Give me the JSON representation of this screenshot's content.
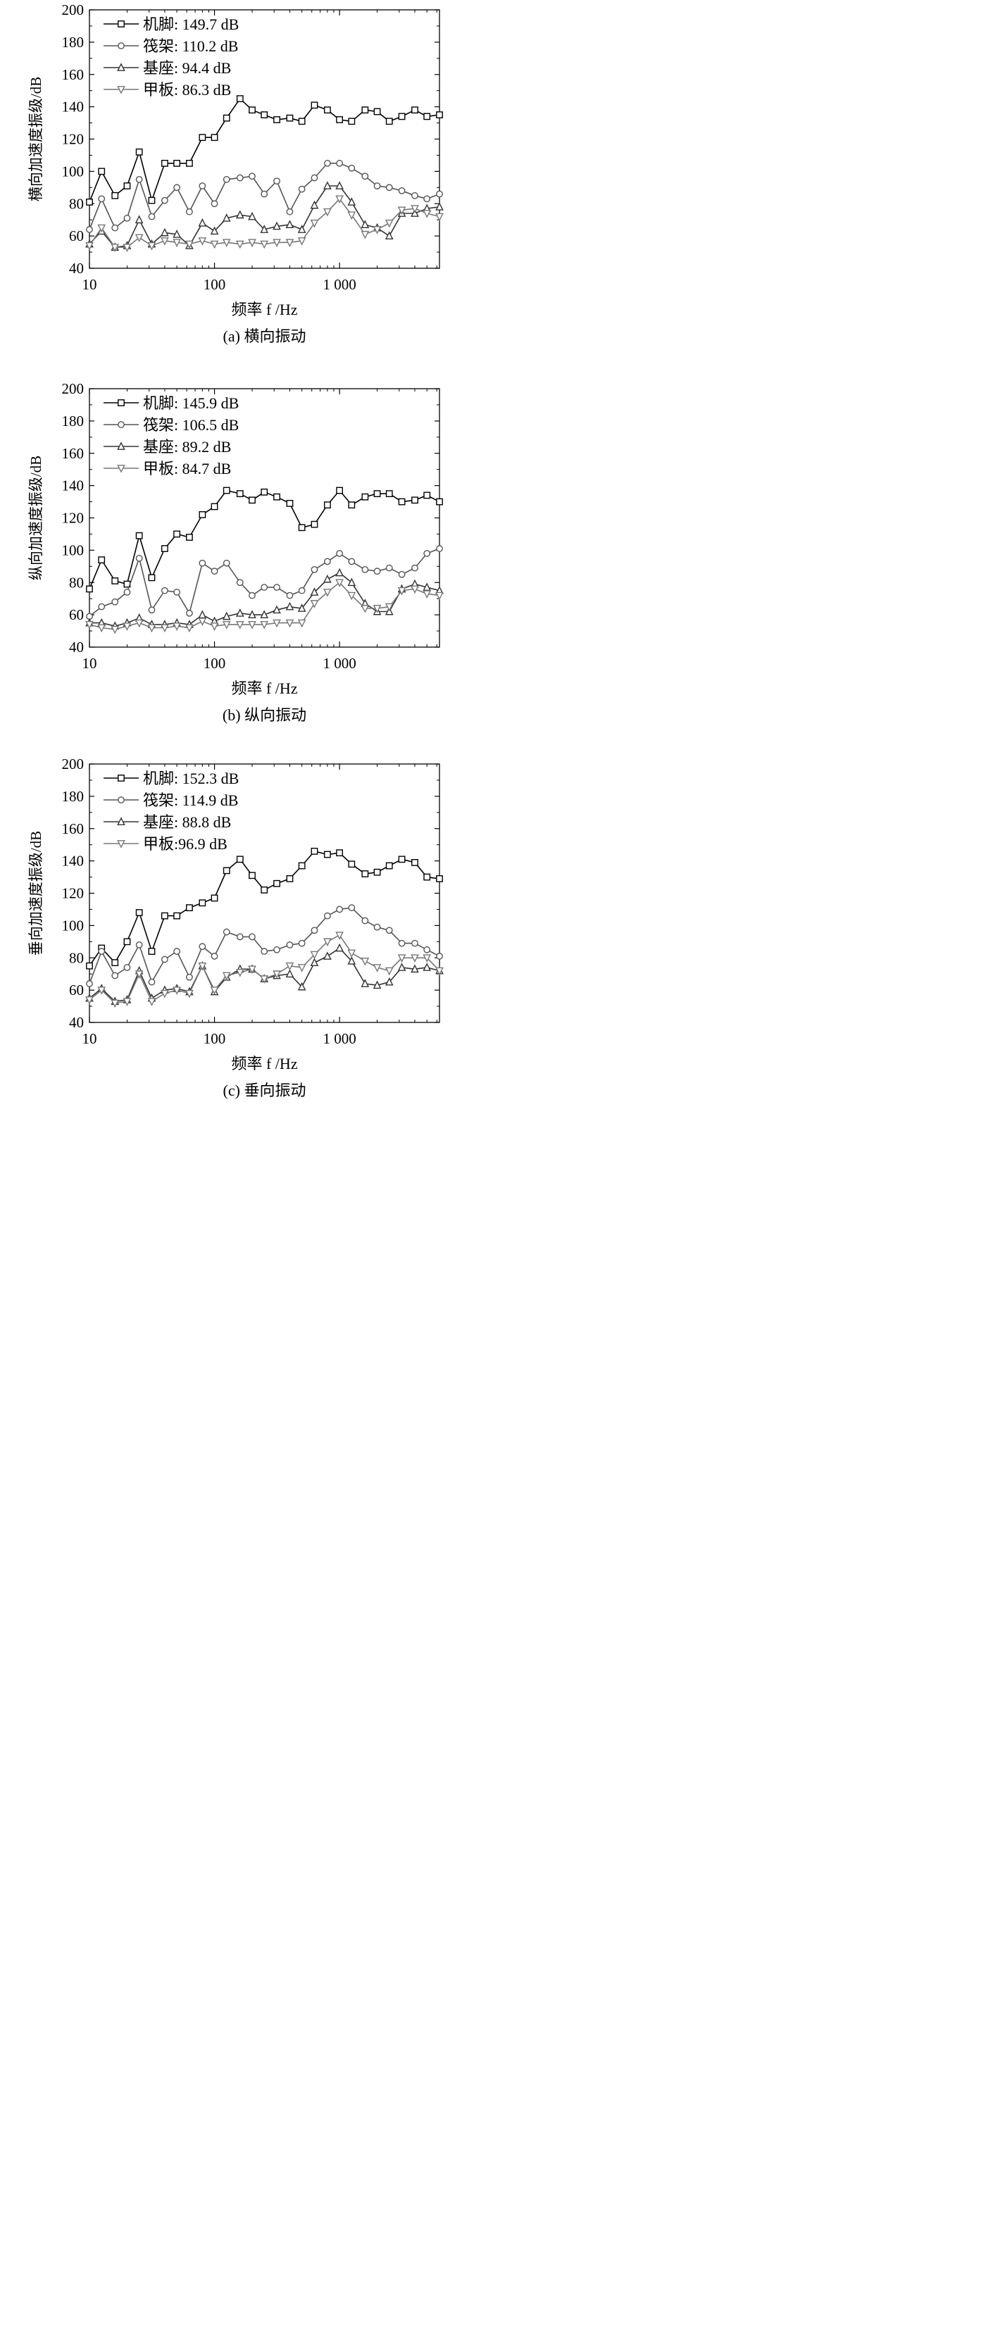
{
  "chart_data": [
    {
      "type": "line",
      "caption": "(a) 横向振动",
      "xlabel": "频率 f /Hz",
      "ylabel": "横向加速度振级/dB",
      "x_scale": "log",
      "xlim": [
        10,
        6300
      ],
      "ylim": [
        40,
        200
      ],
      "x_ticks": [
        10,
        100,
        1000
      ],
      "x_tick_labels": [
        "10",
        "100",
        "1 000"
      ],
      "y_ticks": [
        40,
        60,
        80,
        100,
        120,
        140,
        160,
        180,
        200
      ],
      "x": [
        10,
        12.5,
        16,
        20,
        25,
        31.5,
        40,
        50,
        63,
        80,
        100,
        125,
        160,
        200,
        250,
        315,
        400,
        500,
        630,
        800,
        1000,
        1250,
        1600,
        2000,
        2500,
        3150,
        4000,
        5000,
        6300
      ],
      "legend_position": "top-left",
      "series": [
        {
          "name": "机脚: 149.7 dB",
          "marker": "square",
          "color": "#000000",
          "values": [
            81,
            100,
            85,
            91,
            112,
            82,
            105,
            105,
            105,
            121,
            121,
            133,
            145,
            138,
            135,
            132,
            133,
            131,
            141,
            138,
            132,
            131,
            138,
            137,
            131,
            134,
            138,
            134,
            135
          ]
        },
        {
          "name": "筏架: 110.2 dB",
          "marker": "circle",
          "color": "#555555",
          "values": [
            64,
            83,
            65,
            71,
            95,
            72,
            82,
            90,
            75,
            91,
            80,
            95,
            96,
            97,
            86,
            94,
            75,
            89,
            96,
            105,
            105,
            102,
            97,
            91,
            90,
            88,
            85,
            83,
            86
          ]
        },
        {
          "name": "基座: 94.4 dB",
          "marker": "triangle-up",
          "color": "#333333",
          "values": [
            55,
            63,
            53,
            54,
            70,
            55,
            62,
            61,
            54,
            68,
            63,
            71,
            73,
            72,
            64,
            66,
            67,
            64,
            79,
            91,
            91,
            81,
            67,
            65,
            60,
            74,
            74,
            77,
            78
          ]
        },
        {
          "name": "甲板: 86.3 dB",
          "marker": "triangle-down",
          "color": "#777777",
          "values": [
            54,
            65,
            53,
            53,
            59,
            54,
            57,
            56,
            55,
            57,
            55,
            56,
            55,
            56,
            55,
            56,
            56,
            57,
            68,
            75,
            83,
            73,
            61,
            64,
            68,
            76,
            77,
            74,
            72
          ]
        }
      ]
    },
    {
      "type": "line",
      "caption": "(b) 纵向振动",
      "xlabel": "频率 f /Hz",
      "ylabel": "纵向加速度振级/dB",
      "x_scale": "log",
      "xlim": [
        10,
        6300
      ],
      "ylim": [
        40,
        200
      ],
      "x_ticks": [
        10,
        100,
        1000
      ],
      "x_tick_labels": [
        "10",
        "100",
        "1 000"
      ],
      "y_ticks": [
        40,
        60,
        80,
        100,
        120,
        140,
        160,
        180,
        200
      ],
      "x": [
        10,
        12.5,
        16,
        20,
        25,
        31.5,
        40,
        50,
        63,
        80,
        100,
        125,
        160,
        200,
        250,
        315,
        400,
        500,
        630,
        800,
        1000,
        1250,
        1600,
        2000,
        2500,
        3150,
        4000,
        5000,
        6300
      ],
      "legend_position": "top-left",
      "series": [
        {
          "name": "机脚: 145.9 dB",
          "marker": "square",
          "color": "#000000",
          "values": [
            76,
            94,
            81,
            79,
            109,
            83,
            101,
            110,
            108,
            122,
            127,
            137,
            135,
            131,
            136,
            133,
            129,
            114,
            116,
            128,
            137,
            128,
            133,
            135,
            135,
            130,
            131,
            134,
            130
          ]
        },
        {
          "name": "筏架: 106.5 dB",
          "marker": "circle",
          "color": "#555555",
          "values": [
            59,
            65,
            68,
            74,
            95,
            63,
            75,
            74,
            61,
            92,
            87,
            92,
            80,
            72,
            77,
            77,
            72,
            75,
            88,
            93,
            98,
            93,
            88,
            87,
            89,
            85,
            89,
            98,
            101
          ]
        },
        {
          "name": "基座: 89.2 dB",
          "marker": "triangle-up",
          "color": "#333333",
          "values": [
            55,
            55,
            53,
            55,
            58,
            54,
            54,
            55,
            54,
            60,
            56,
            59,
            61,
            60,
            60,
            63,
            65,
            64,
            74,
            82,
            86,
            80,
            67,
            62,
            62,
            76,
            79,
            77,
            75
          ]
        },
        {
          "name": "甲板: 84.7 dB",
          "marker": "triangle-down",
          "color": "#777777",
          "values": [
            54,
            52,
            51,
            53,
            55,
            52,
            52,
            53,
            52,
            56,
            53,
            54,
            54,
            54,
            54,
            55,
            55,
            55,
            67,
            74,
            80,
            72,
            64,
            64,
            65,
            75,
            76,
            73,
            72
          ]
        }
      ]
    },
    {
      "type": "line",
      "caption": "(c) 垂向振动",
      "xlabel": "频率 f /Hz",
      "ylabel": "垂向加速度振级/dB",
      "x_scale": "log",
      "xlim": [
        10,
        6300
      ],
      "ylim": [
        40,
        200
      ],
      "x_ticks": [
        10,
        100,
        1000
      ],
      "x_tick_labels": [
        "10",
        "100",
        "1 000"
      ],
      "y_ticks": [
        40,
        60,
        80,
        100,
        120,
        140,
        160,
        180,
        200
      ],
      "x": [
        10,
        12.5,
        16,
        20,
        25,
        31.5,
        40,
        50,
        63,
        80,
        100,
        125,
        160,
        200,
        250,
        315,
        400,
        500,
        630,
        800,
        1000,
        1250,
        1600,
        2000,
        2500,
        3150,
        4000,
        5000,
        6300
      ],
      "legend_position": "top-left",
      "series": [
        {
          "name": "机脚: 152.3 dB",
          "marker": "square",
          "color": "#000000",
          "values": [
            75,
            86,
            77,
            90,
            108,
            84,
            106,
            106,
            111,
            114,
            117,
            134,
            141,
            131,
            122,
            126,
            129,
            137,
            146,
            144,
            145,
            138,
            132,
            133,
            137,
            141,
            139,
            130,
            129
          ]
        },
        {
          "name": "筏架: 114.9 dB",
          "marker": "circle",
          "color": "#555555",
          "values": [
            64,
            84,
            69,
            74,
            88,
            65,
            79,
            84,
            68,
            87,
            81,
            96,
            93,
            93,
            84,
            85,
            88,
            89,
            97,
            106,
            110,
            111,
            103,
            99,
            97,
            89,
            89,
            85,
            81
          ]
        },
        {
          "name": "基座: 88.8 dB",
          "marker": "triangle-up",
          "color": "#333333",
          "values": [
            55,
            61,
            53,
            54,
            72,
            55,
            60,
            61,
            59,
            75,
            59,
            68,
            73,
            73,
            67,
            69,
            70,
            62,
            77,
            81,
            86,
            78,
            64,
            63,
            65,
            74,
            73,
            74,
            72
          ]
        },
        {
          "name": "甲板:96.9 dB",
          "marker": "triangle-down",
          "color": "#777777",
          "values": [
            54,
            60,
            52,
            53,
            70,
            53,
            58,
            60,
            58,
            75,
            60,
            69,
            71,
            73,
            67,
            70,
            75,
            74,
            82,
            90,
            94,
            83,
            78,
            74,
            72,
            80,
            80,
            80,
            72
          ]
        }
      ]
    }
  ]
}
